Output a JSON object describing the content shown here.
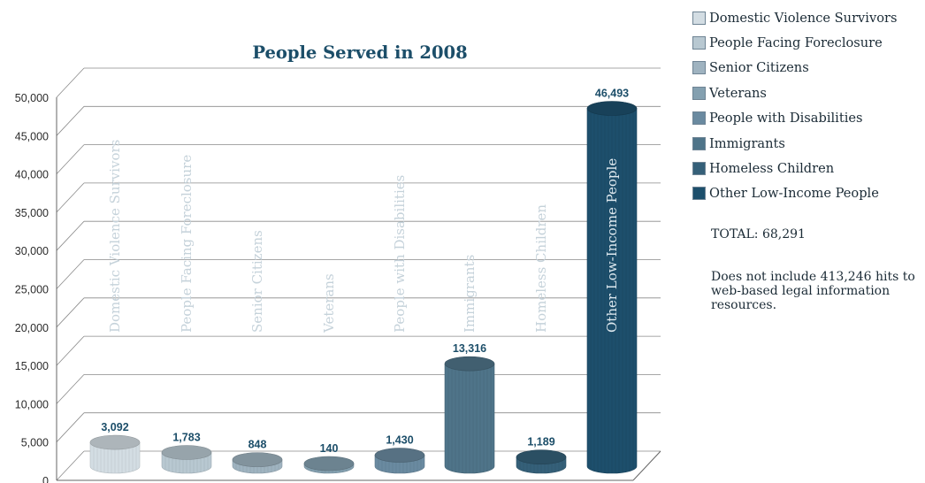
{
  "chart_data": {
    "type": "bar",
    "title": "People Served in 2008",
    "categories": [
      "Domestic Violence Survivors",
      "People Facing Foreclosure",
      "Senior Citizens",
      "Veterans",
      "People with Disabilities",
      "Immigrants",
      "Homeless Children",
      "Other Low-Income People"
    ],
    "values": [
      3092,
      1783,
      848,
      140,
      1430,
      13316,
      1189,
      46493
    ],
    "value_labels": [
      "3,092",
      "1,783",
      "848",
      "140",
      "1,430",
      "13,316",
      "1,189",
      "46,493"
    ],
    "ylim": [
      0,
      50000
    ],
    "yticks": [
      "0",
      "5,000",
      "10,000",
      "15,000",
      "20,000",
      "25,000",
      "30,000",
      "35,000",
      "40,000",
      "45,000",
      "50,000"
    ],
    "grid": true,
    "legend_position": "top-right",
    "colors": [
      "#d3dde3",
      "#b8c8d1",
      "#9fb3c0",
      "#84a0b0",
      "#6a8aa0",
      "#4f7489",
      "#356079",
      "#1d4f6c"
    ]
  },
  "summary": {
    "total": "TOTAL: 68,291",
    "note": "Does not include 413,246 hits to web-based legal information resources."
  }
}
